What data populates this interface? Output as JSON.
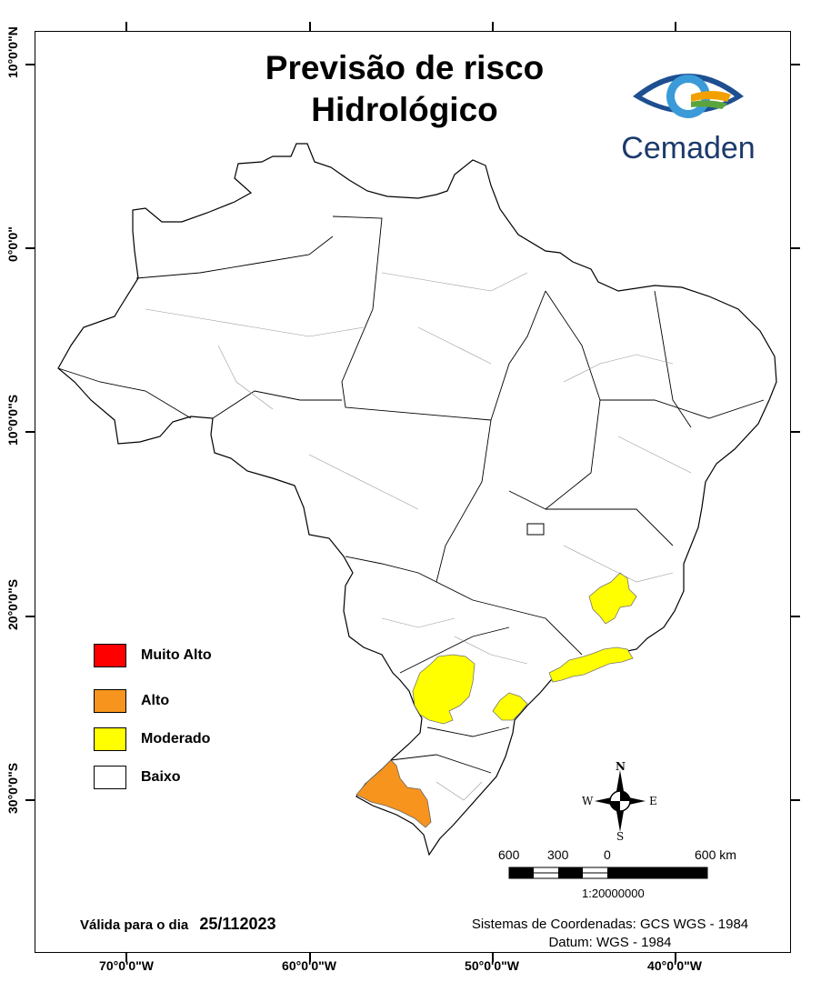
{
  "title": {
    "line1": "Previsão de risco",
    "line2": "Hidrológico"
  },
  "logo": {
    "name": "Cemaden"
  },
  "axes": {
    "x_labels": [
      "70°0'0\"W",
      "60°0'0\"W",
      "50°0'0\"W",
      "40°0'0\"W"
    ],
    "y_labels": [
      "10°0'0\"N",
      "0°0'0\"",
      "10°0'0\"S",
      "20°0'0\"S",
      "30°0'0\"S"
    ]
  },
  "legend": [
    {
      "label": "Muito Alto",
      "color": "#ff0000"
    },
    {
      "label": "Alto",
      "color": "#f7941d"
    },
    {
      "label": "Moderado",
      "color": "#ffff00"
    },
    {
      "label": "Baixo",
      "color": "#ffffff"
    }
  ],
  "validity": {
    "prefix": "Válida para o dia",
    "date": "25/112023"
  },
  "coordinate_system": {
    "line1": "Sistemas de Coordenadas: GCS WGS - 1984",
    "line2": "Datum: WGS - 1984"
  },
  "scale": {
    "labels": [
      "600",
      "300",
      "0",
      "600 km"
    ],
    "ratio": "1:20000000"
  },
  "compass": {
    "n": "N",
    "s": "S",
    "e": "E",
    "w": "W"
  }
}
